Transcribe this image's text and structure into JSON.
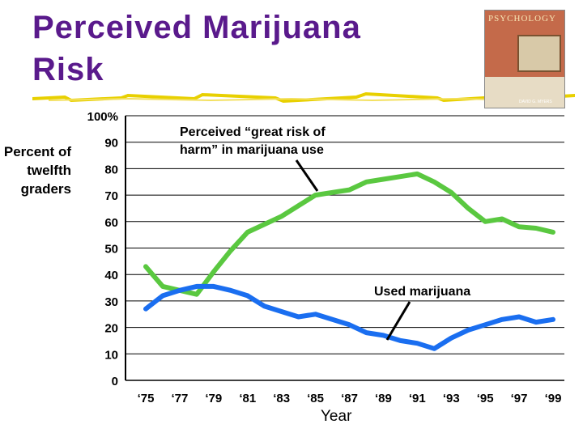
{
  "title": {
    "line1": "Perceived Marijuana",
    "line2": "Risk"
  },
  "book_cover": {
    "text": "PSYCHOLOGY",
    "author": "DAVID G. MYERS",
    "icon": "psychology-book-cover-image"
  },
  "chart_data": {
    "type": "line",
    "title": "",
    "ylabel": "Percent of twelfth graders",
    "xlabel": "Year",
    "ylim": [
      0,
      100
    ],
    "yticks": [
      "0",
      "10",
      "20",
      "30",
      "40",
      "50",
      "60",
      "70",
      "80",
      "90",
      "100%"
    ],
    "xticks": [
      "‘75",
      "‘77",
      "‘79",
      "‘81",
      "‘83",
      "‘85",
      "‘87",
      "‘89",
      "‘91",
      "‘93",
      "‘95",
      "‘97",
      "‘99"
    ],
    "x": [
      1975,
      1976,
      1977,
      1978,
      1979,
      1980,
      1981,
      1982,
      1983,
      1984,
      1985,
      1986,
      1987,
      1988,
      1989,
      1990,
      1991,
      1992,
      1993,
      1994,
      1995,
      1996,
      1997,
      1998,
      1999
    ],
    "series": [
      {
        "name": "Perceived “great risk of harm” in marijuana use",
        "color": "#5ac840",
        "values": [
          43,
          35.5,
          34,
          32.5,
          41,
          49,
          56,
          59,
          62,
          66,
          70,
          71,
          72,
          75,
          76,
          77,
          78,
          75,
          71,
          65,
          60,
          61,
          58,
          57.5,
          56
        ]
      },
      {
        "name": "Used marijuana",
        "color": "#1a6ef0",
        "values": [
          27,
          32,
          34,
          35.5,
          35.5,
          34,
          32,
          28,
          26,
          24,
          25,
          23,
          21,
          18,
          17,
          15,
          14,
          12,
          16,
          19,
          21,
          23,
          24,
          22,
          23
        ]
      }
    ],
    "annotations": [
      {
        "text": "Perceived “great risk of harm” in marijuana use",
        "points_to": "green-series"
      },
      {
        "text": "Used marijuana",
        "points_to": "blue-series"
      }
    ],
    "grid": true
  }
}
